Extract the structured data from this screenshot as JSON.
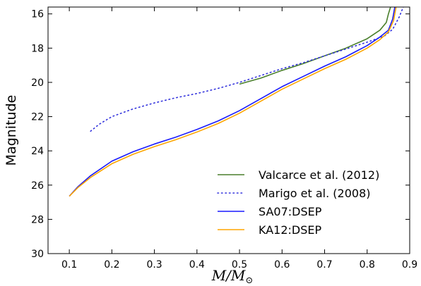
{
  "chart_data": {
    "type": "line",
    "xlabel": "M/M",
    "xlabel_sub": "⊙",
    "ylabel": "Magnitude",
    "xlim": [
      0.05,
      0.9
    ],
    "ylim": [
      30,
      15.6
    ],
    "y_inverted": true,
    "xticks": [
      "0.1",
      "0.2",
      "0.3",
      "0.4",
      "0.5",
      "0.6",
      "0.7",
      "0.8",
      "0.9"
    ],
    "yticks": [
      "16",
      "18",
      "20",
      "22",
      "24",
      "26",
      "28",
      "30"
    ],
    "grid": false,
    "legend_position": "bottom-right",
    "series": [
      {
        "name": "Valcarce et al. (2012)",
        "color": "#4a7f2c",
        "style": "solid",
        "points": [
          [
            0.5,
            20.1
          ],
          [
            0.55,
            19.75
          ],
          [
            0.6,
            19.3
          ],
          [
            0.65,
            18.9
          ],
          [
            0.7,
            18.45
          ],
          [
            0.75,
            18.0
          ],
          [
            0.8,
            17.45
          ],
          [
            0.83,
            16.95
          ],
          [
            0.845,
            16.5
          ],
          [
            0.85,
            16.0
          ],
          [
            0.855,
            15.6
          ]
        ]
      },
      {
        "name": "Marigo et al. (2008)",
        "color": "#3333dd",
        "style": "dotted",
        "points": [
          [
            0.15,
            22.85
          ],
          [
            0.17,
            22.45
          ],
          [
            0.2,
            22.0
          ],
          [
            0.25,
            21.55
          ],
          [
            0.3,
            21.2
          ],
          [
            0.35,
            20.9
          ],
          [
            0.4,
            20.65
          ],
          [
            0.45,
            20.35
          ],
          [
            0.5,
            20.0
          ],
          [
            0.55,
            19.6
          ],
          [
            0.6,
            19.2
          ],
          [
            0.65,
            18.85
          ],
          [
            0.7,
            18.45
          ],
          [
            0.75,
            18.05
          ],
          [
            0.8,
            17.65
          ],
          [
            0.84,
            17.3
          ],
          [
            0.86,
            16.9
          ],
          [
            0.875,
            16.2
          ],
          [
            0.885,
            15.6
          ]
        ]
      },
      {
        "name": "SA07:DSEP",
        "color": "#1a1aff",
        "style": "solid",
        "points": [
          [
            0.1,
            26.65
          ],
          [
            0.12,
            26.1
          ],
          [
            0.15,
            25.45
          ],
          [
            0.2,
            24.6
          ],
          [
            0.25,
            24.05
          ],
          [
            0.3,
            23.6
          ],
          [
            0.35,
            23.2
          ],
          [
            0.4,
            22.75
          ],
          [
            0.45,
            22.25
          ],
          [
            0.5,
            21.65
          ],
          [
            0.55,
            20.95
          ],
          [
            0.6,
            20.25
          ],
          [
            0.65,
            19.65
          ],
          [
            0.7,
            19.05
          ],
          [
            0.75,
            18.5
          ],
          [
            0.8,
            17.85
          ],
          [
            0.83,
            17.35
          ],
          [
            0.85,
            16.95
          ],
          [
            0.86,
            16.3
          ],
          [
            0.865,
            15.6
          ]
        ]
      },
      {
        "name": "KA12:DSEP",
        "color": "#ffa500",
        "style": "solid",
        "points": [
          [
            0.1,
            26.65
          ],
          [
            0.12,
            26.15
          ],
          [
            0.15,
            25.55
          ],
          [
            0.2,
            24.75
          ],
          [
            0.25,
            24.2
          ],
          [
            0.3,
            23.75
          ],
          [
            0.35,
            23.35
          ],
          [
            0.4,
            22.9
          ],
          [
            0.45,
            22.4
          ],
          [
            0.5,
            21.8
          ],
          [
            0.55,
            21.1
          ],
          [
            0.6,
            20.4
          ],
          [
            0.65,
            19.8
          ],
          [
            0.7,
            19.2
          ],
          [
            0.75,
            18.65
          ],
          [
            0.8,
            18.0
          ],
          [
            0.83,
            17.5
          ],
          [
            0.85,
            17.05
          ],
          [
            0.862,
            16.4
          ],
          [
            0.868,
            15.6
          ]
        ]
      }
    ]
  }
}
